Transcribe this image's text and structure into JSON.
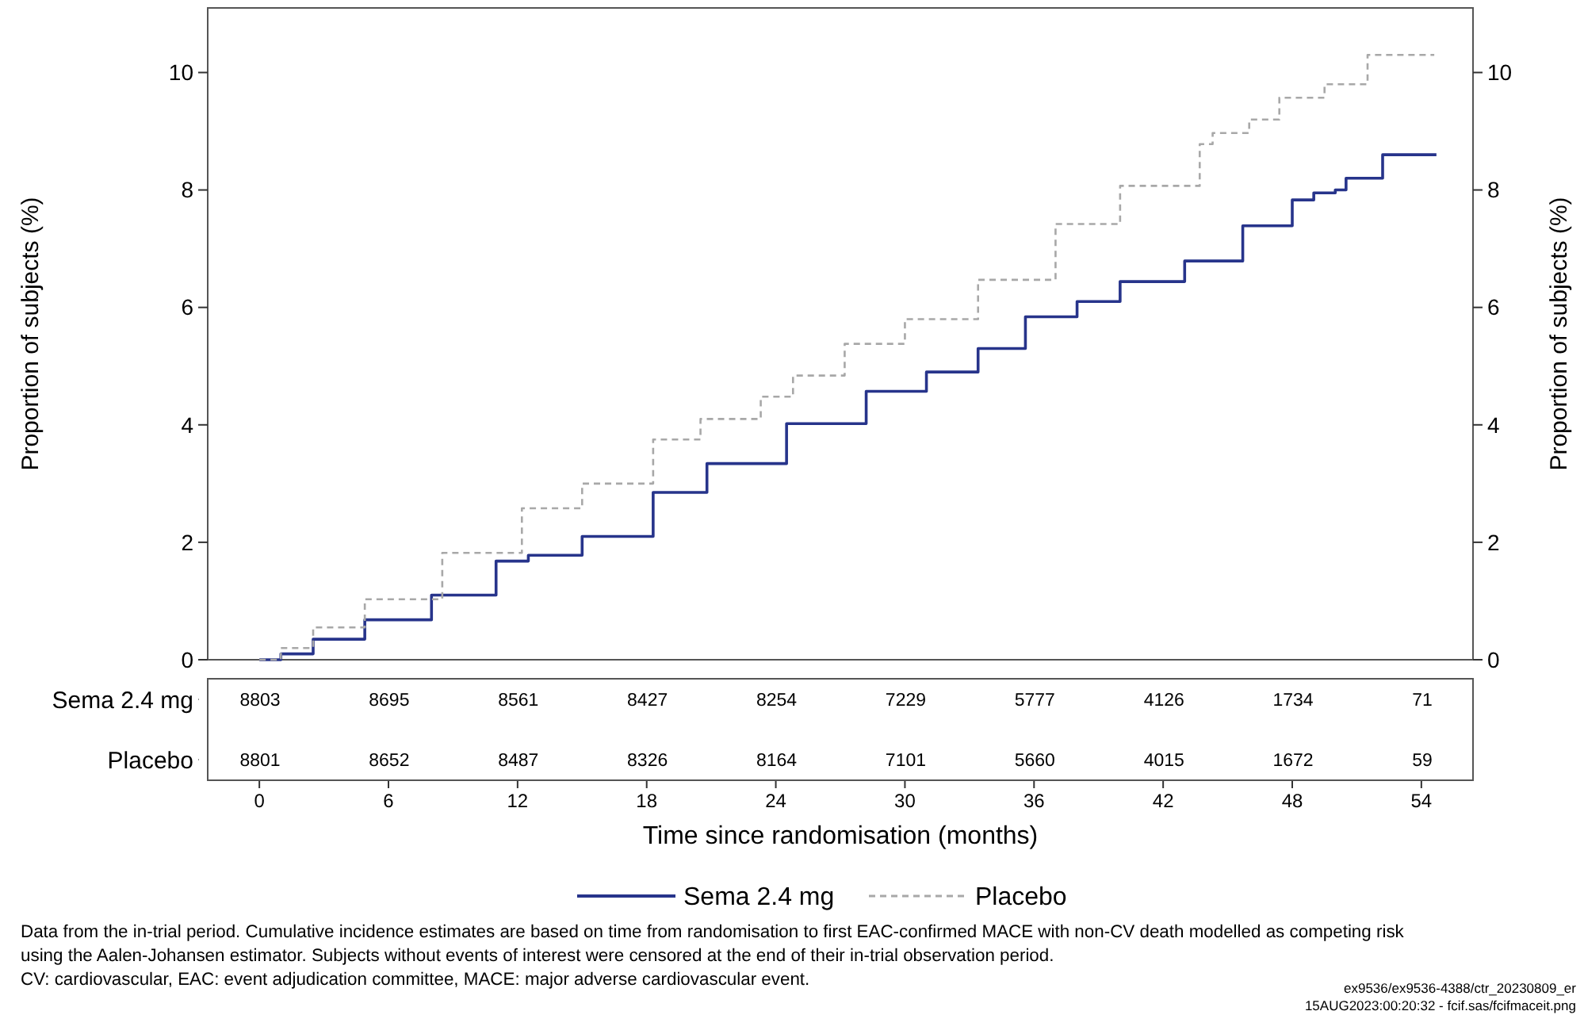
{
  "chart_data": [
    {
      "type": "step",
      "ylabel": "Proportion of subjects (%)",
      "y2label": "Proportion of subjects (%)",
      "xlim": [
        -2.4,
        56.4
      ],
      "xticks": [
        0,
        6,
        12,
        18,
        24,
        30,
        36,
        42,
        48,
        54
      ],
      "xlabel": "Time since randomisation (months)",
      "ylim": [
        0,
        11.1
      ],
      "yticks": [
        0,
        2,
        4,
        6,
        8,
        10
      ],
      "y2lim": [
        0,
        11.1
      ],
      "y2ticks": [
        0,
        2,
        4,
        6,
        8,
        10
      ],
      "legend": "bottom",
      "grid": false,
      "series": [
        {
          "name": "Sema 2.4 mg",
          "color": "#27348b",
          "line_style": "solid",
          "x": [
            0,
            1,
            2.5,
            4.9,
            8,
            11,
            12.5,
            15,
            18.3,
            20.8,
            24.5,
            28.2,
            31,
            33.4,
            35.6,
            38,
            40,
            43,
            45.7,
            48,
            49,
            50,
            50.5,
            52.2,
            54.7
          ],
          "values": [
            0,
            0.1,
            0.35,
            0.68,
            1.1,
            1.68,
            1.78,
            2.1,
            2.85,
            3.34,
            4.02,
            4.57,
            4.9,
            5.3,
            5.84,
            6.1,
            6.44,
            6.79,
            7.39,
            7.83,
            7.95,
            8.0,
            8.2,
            8.6,
            8.6
          ]
        },
        {
          "name": "Placebo",
          "color": "#a8a8a8",
          "line_style": "dashed",
          "x": [
            0,
            1,
            2.5,
            4.9,
            8.5,
            12.2,
            15,
            18.3,
            20.5,
            23.3,
            24.8,
            27.2,
            30,
            33.4,
            37,
            40,
            43.7,
            44.3,
            46,
            47.4,
            49.5,
            51.5,
            54.6
          ],
          "values": [
            0,
            0.2,
            0.55,
            1.03,
            1.82,
            2.58,
            3.0,
            3.75,
            4.1,
            4.48,
            4.84,
            5.38,
            5.8,
            6.47,
            7.42,
            8.07,
            8.78,
            8.97,
            9.2,
            9.57,
            9.8,
            10.3,
            10.3
          ]
        }
      ],
      "annotations": [
        "Data from the in-trial period. Cumulative incidence estimates are based on time from randomisation to first EAC-confirmed MACE with non-CV death modelled as competing risk",
        "using the Aalen-Johansen estimator. Subjects without events of interest were censored at the end of their in-trial observation period.",
        "CV: cardiovascular, EAC: event adjudication committee, MACE: major adverse cardiovascular event.",
        "ex9536/ex9536-4388/ctr_20230809_er",
        "15AUG2023:00:20:32 - fcif.sas/fcifmaceit.png"
      ]
    },
    {
      "type": "heatmap",
      "data_labels": true,
      "categories": [
        null,
        null,
        null,
        null,
        null,
        null,
        null,
        null,
        null,
        null
      ],
      "y_categories": [
        "Sema 2.4 mg",
        "Placebo"
      ],
      "cells": [
        [
          8803,
          8695,
          8561,
          8427,
          8254,
          7229,
          5777,
          4126,
          1734,
          71
        ],
        [
          8801,
          8652,
          8487,
          8326,
          8164,
          7101,
          5660,
          4015,
          1672,
          59
        ]
      ]
    }
  ]
}
